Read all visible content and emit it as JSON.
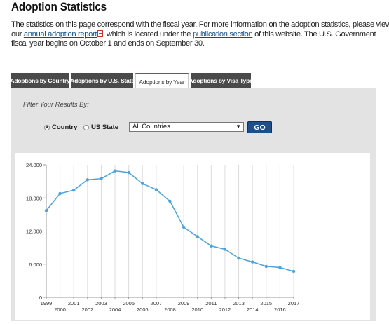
{
  "page": {
    "title": "Adoption Statistics",
    "intro_before_link1": "The statistics on this page correspond with the fiscal year.  For more information on the adoption statistics, please view our ",
    "link1": "annual adoption report",
    "intro_between": " which is located under the ",
    "link2": "publication section",
    "intro_after": " of this website. The U.S. Government fiscal year begins on October 1 and ends on September 30."
  },
  "tabs": [
    {
      "label": "Adoptions by Country"
    },
    {
      "label": "Adoptions by U.S. State"
    },
    {
      "label": "Adoptions by Year"
    },
    {
      "label": "Adoptions by Visa Type"
    }
  ],
  "filter": {
    "label": "Filter Your Results By:",
    "radio_country": "Country",
    "radio_state": "US State",
    "selected": "Country",
    "select_value": "All Countries",
    "go_label": "GO"
  },
  "colors": {
    "line": "#4aa3df",
    "tab_dark": "#4a4a4a",
    "tab_active_border": "#c0392b",
    "go_button": "#1f4e8c"
  },
  "chart_data": {
    "type": "line",
    "x": [
      1999,
      2000,
      2001,
      2002,
      2003,
      2004,
      2005,
      2006,
      2007,
      2008,
      2009,
      2010,
      2011,
      2012,
      2013,
      2014,
      2015,
      2016,
      2017
    ],
    "y": [
      15700,
      18800,
      19400,
      21300,
      21500,
      22900,
      22600,
      20600,
      19500,
      17400,
      12700,
      11000,
      9300,
      8700,
      7100,
      6400,
      5600,
      5400,
      4700
    ],
    "y_ticks": [
      "0",
      "6.000",
      "12.000",
      "18.000",
      "24.000"
    ],
    "ylim": [
      0,
      24000
    ],
    "grid": "vertical"
  }
}
